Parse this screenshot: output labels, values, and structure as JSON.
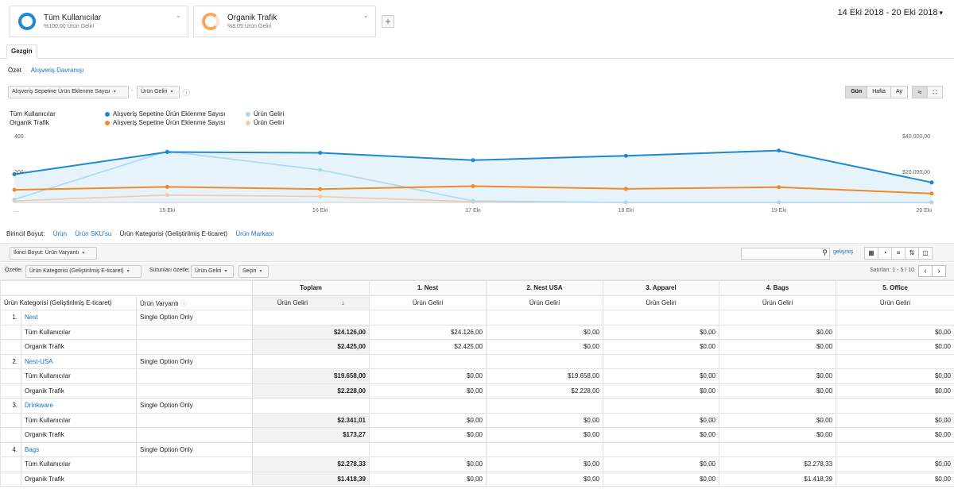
{
  "segments": [
    {
      "name": "Tüm Kullanıcılar",
      "sub": "%100,00 Ürün Geliri",
      "color": "#1e88d0"
    },
    {
      "name": "Organik Trafik",
      "sub": "%8,05 Ürün Geliri",
      "color": "#f7a65a"
    }
  ],
  "add_segment": "+",
  "date_range": "14 Eki 2018 - 20 Eki 2018",
  "tab": "Gezgin",
  "subtabs": {
    "summary": "Özet",
    "shopping": "Alışveriş Davranışı"
  },
  "metric1": "Alışveriş Sepetine Ürün Eklenme Sayısı",
  "metric2": "Ürün Geliri",
  "time_buttons": [
    "Gün",
    "Hafta",
    "Ay"
  ],
  "legend": {
    "seg1": "Tüm Kullanıcılar",
    "seg2": "Organik Trafik",
    "m1": "Alışveriş Sepetine Ürün Eklenme Sayısı",
    "m2": "Ürün Geliri"
  },
  "colors": {
    "blue": "#1e88d0",
    "lightblue": "#a9d9f2",
    "orange": "#f08a24",
    "lightorange": "#f7c9a6",
    "fill": "#e6f3fb"
  },
  "chart_data": {
    "type": "line",
    "x": [
      "14 Eki",
      "15 Eki",
      "16 Eki",
      "17 Eki",
      "18 Eki",
      "19 Eki",
      "20 Eki"
    ],
    "tick_labels": [
      "...",
      "15 Eki",
      "16 Eki",
      "17 Eki",
      "18 Eki",
      "19 Eki",
      "20 Eki"
    ],
    "left_axis_labels": [
      "400",
      "200"
    ],
    "right_axis_labels": [
      "$40.000,00",
      "$20.000,00"
    ],
    "series": [
      {
        "name": "Tüm Kullanıcılar - Alışveriş Sepetine Ürün Eklenme Sayısı",
        "axis": "left",
        "values": [
          190,
          340,
          335,
          285,
          315,
          350,
          135
        ]
      },
      {
        "name": "Tüm Kullanıcılar - Ürün Geliri",
        "axis": "right",
        "values": [
          2000,
          34500,
          22000,
          1000,
          0,
          0,
          0
        ]
      },
      {
        "name": "Organik Trafik - Alışveriş Sepetine Ürün Eklenme Sayısı",
        "axis": "left",
        "values": [
          85,
          105,
          90,
          110,
          92,
          103,
          60
        ]
      },
      {
        "name": "Organik Trafik - Ürün Geliri",
        "axis": "right",
        "values": [
          1000,
          5000,
          4000,
          500,
          0,
          0,
          0
        ]
      }
    ],
    "ylim_left": [
      0,
      450
    ],
    "ylim_right": [
      0,
      45000
    ],
    "grid": false
  },
  "primary_dim": {
    "label": "Birincil Boyut:",
    "items": [
      "Ürün",
      "Ürün SKU'su",
      "Ürün Kategorisi (Geliştirilmiş E-ticaret)",
      "Ürün Markası"
    ]
  },
  "toolbar": {
    "secondary": "İkinci Boyut: Ürün Varyantı",
    "advanced": "gelişmiş"
  },
  "toolbar2": {
    "pivot_label": "Özetle:",
    "pivot_value": "Ürün Kategorisi (Geliştirilmiş E-ticaret)",
    "columns_label": "Sütunları özetle:",
    "columns_value": "Ürün Geliri",
    "select": "Seçin",
    "show_rows": "Satırları: 1 - 5 / 10"
  },
  "table": {
    "col_headers": [
      "Toplam",
      "1. Nest",
      "2. Nest USA",
      "3. Apparel",
      "4. Bags",
      "5. Office"
    ],
    "dim_header": "Ürün Kategorisi (Geliştirilmiş E-ticaret)",
    "variant_header": "Ürün Varyantı",
    "metric_header": "Ürün Geliri",
    "groups": [
      {
        "idx": "1.",
        "name": "Nest",
        "variant": "Single Option Only",
        "rows": [
          {
            "seg": "Tüm Kullanıcılar",
            "vals": [
              "$24.126,00",
              "$24.126,00",
              "$0,00",
              "$0,00",
              "$0,00",
              "$0,00"
            ]
          },
          {
            "seg": "Organik Trafik",
            "vals": [
              "$2.425,00",
              "$2.425,00",
              "$0,00",
              "$0,00",
              "$0,00",
              "$0,00"
            ]
          }
        ]
      },
      {
        "idx": "2.",
        "name": "Nest-USA",
        "variant": "Single Option Only",
        "rows": [
          {
            "seg": "Tüm Kullanıcılar",
            "vals": [
              "$19.658,00",
              "$0,00",
              "$19.658,00",
              "$0,00",
              "$0,00",
              "$0,00"
            ]
          },
          {
            "seg": "Organik Trafik",
            "vals": [
              "$2.228,00",
              "$0,00",
              "$2.228,00",
              "$0,00",
              "$0,00",
              "$0,00"
            ]
          }
        ]
      },
      {
        "idx": "3.",
        "name": "Drinkware",
        "variant": "Single Option Only",
        "rows": [
          {
            "seg": "Tüm Kullanıcılar",
            "vals": [
              "$2.341,01",
              "$0,00",
              "$0,00",
              "$0,00",
              "$0,00",
              "$0,00"
            ]
          },
          {
            "seg": "Organik Trafik",
            "vals": [
              "$173,27",
              "$0,00",
              "$0,00",
              "$0,00",
              "$0,00",
              "$0,00"
            ]
          }
        ]
      },
      {
        "idx": "4.",
        "name": "Bags",
        "variant": "Single Option Only",
        "rows": [
          {
            "seg": "Tüm Kullanıcılar",
            "vals": [
              "$2.278,33",
              "$0,00",
              "$0,00",
              "$0,00",
              "$2.278,33",
              "$0,00"
            ]
          },
          {
            "seg": "Organik Trafik",
            "vals": [
              "$1.418,39",
              "$0,00",
              "$0,00",
              "$0,00",
              "$1.418,39",
              "$0,00"
            ]
          }
        ]
      }
    ]
  }
}
